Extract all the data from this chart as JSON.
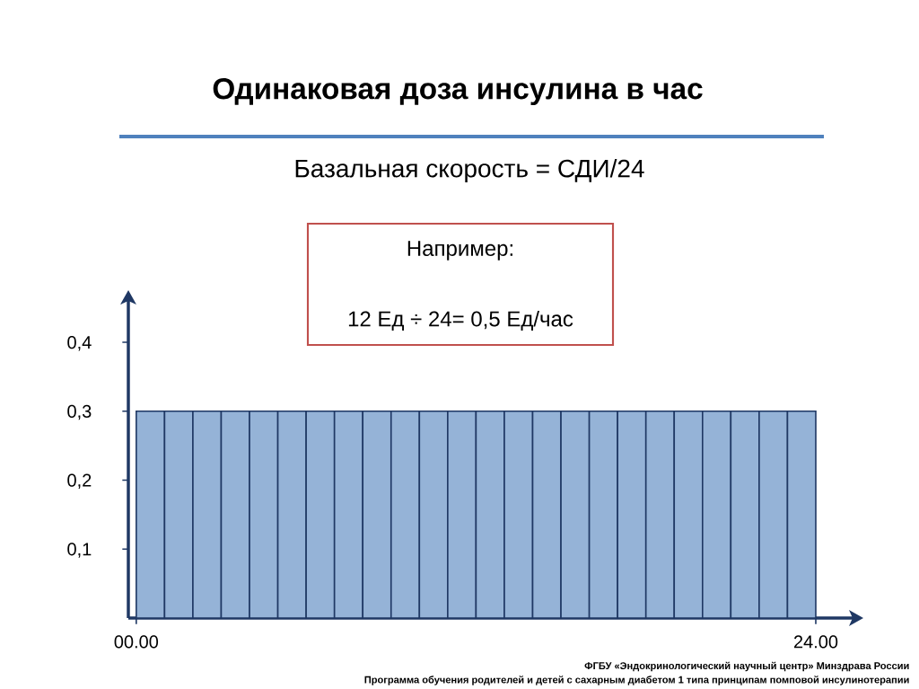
{
  "chart_data": {
    "type": "bar",
    "title": "Одинаковая доза инсулина в час",
    "subtitle": "Базальная скорость = СДИ/24",
    "annotations": [
      "Например:",
      "12 Ед ÷ 24= 0,5 Ед/час",
      "ФГБУ «Эндокринологический научный центр» Минздрава России",
      "Программа обучения родителей и детей с сахарным диабетом 1 типа принципам помповой инсулинотерапии"
    ],
    "x": [
      0.5,
      1.5,
      2.5,
      3.5,
      4.5,
      5.5,
      6.5,
      7.5,
      8.5,
      9.5,
      10.5,
      11.5,
      12.5,
      13.5,
      14.5,
      15.5,
      16.5,
      17.5,
      18.5,
      19.5,
      20.5,
      21.5,
      22.5,
      23.5
    ],
    "values": [
      0.3,
      0.3,
      0.3,
      0.3,
      0.3,
      0.3,
      0.3,
      0.3,
      0.3,
      0.3,
      0.3,
      0.3,
      0.3,
      0.3,
      0.3,
      0.3,
      0.3,
      0.3,
      0.3,
      0.3,
      0.3,
      0.3,
      0.3,
      0.3
    ],
    "color": "#95b3d7",
    "xlim": [
      -0.28,
      25.3
    ],
    "xticks": [
      {
        "value": 0,
        "label": "00.00"
      },
      {
        "value": 24,
        "label": "24.00"
      }
    ],
    "ylim": [
      0,
      0.46
    ],
    "yticks": [
      {
        "value": 0.1,
        "label": "0,1"
      },
      {
        "value": 0.2,
        "label": "0,2"
      },
      {
        "value": 0.3,
        "label": "0,3"
      },
      {
        "value": 0.4,
        "label": "0,4"
      }
    ]
  }
}
